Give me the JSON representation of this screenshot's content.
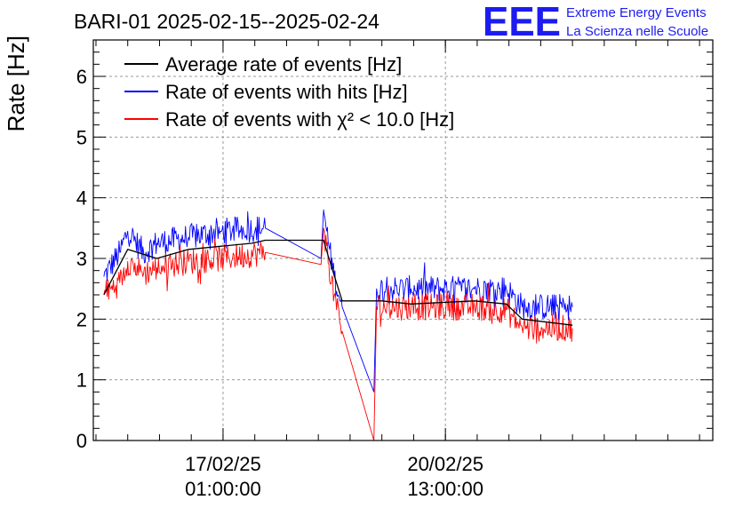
{
  "chart_data": {
    "type": "line",
    "title": "BARI-01 2025-02-15--2025-02-24",
    "ylabel": "Rate [Hz]",
    "xlabel": "",
    "ylim": [
      0,
      6.6
    ],
    "yticks": [
      0,
      1,
      2,
      3,
      4,
      5,
      6
    ],
    "x_range": [
      "2025-02-15 00:00:00",
      "2025-02-24 18:00:00"
    ],
    "xticks": [
      {
        "x": "2025-02-17 01:00:00",
        "date": "17/02/25",
        "time": "01:00:00"
      },
      {
        "x": "2025-02-20 13:00:00",
        "date": "20/02/25",
        "time": "13:00:00"
      }
    ],
    "grid": true,
    "legend_position": "top-left",
    "logo": {
      "mark": "EEE",
      "line1": "Extreme Energy Events",
      "line2": "La Scienza nelle Scuole",
      "color": "#1c1cf0"
    },
    "series": [
      {
        "name": "Average rate of events [Hz]",
        "color": "#000000",
        "points": [
          [
            "2025-02-15 04:00",
            2.4
          ],
          [
            "2025-02-15 13:00",
            3.15
          ],
          [
            "2025-02-16 00:00",
            3.0
          ],
          [
            "2025-02-16 12:00",
            3.15
          ],
          [
            "2025-02-17 00:00",
            3.2
          ],
          [
            "2025-02-17 12:00",
            3.25
          ],
          [
            "2025-02-17 17:00",
            3.3
          ],
          [
            "2025-02-18 15:00",
            3.3
          ],
          [
            "2025-02-18 17:00",
            3.0
          ],
          [
            "2025-02-18 22:00",
            2.3
          ],
          [
            "2025-02-19 11:00",
            2.3
          ],
          [
            "2025-02-19 13:00",
            2.3
          ],
          [
            "2025-02-20 00:00",
            2.25
          ],
          [
            "2025-02-21 00:00",
            2.3
          ],
          [
            "2025-02-21 12:00",
            2.25
          ],
          [
            "2025-02-21 18:00",
            2.0
          ],
          [
            "2025-02-22 13:00",
            1.9
          ]
        ]
      },
      {
        "name": "Rate of events with hits [Hz]",
        "color": "#0000ff",
        "points": [
          [
            "2025-02-15 04:00",
            2.7
          ],
          [
            "2025-02-15 10:00",
            3.1
          ],
          [
            "2025-02-15 13:00",
            3.45
          ],
          [
            "2025-02-15 19:00",
            3.1
          ],
          [
            "2025-02-16 00:00",
            3.25
          ],
          [
            "2025-02-16 12:00",
            3.35
          ],
          [
            "2025-02-17 00:00",
            3.45
          ],
          [
            "2025-02-17 17:00",
            3.5
          ],
          [
            "2025-02-18 14:00",
            3.0
          ],
          [
            "2025-02-18 15:00",
            3.8
          ],
          [
            "2025-02-18 17:00",
            3.2
          ],
          [
            "2025-02-18 19:00",
            2.7
          ],
          [
            "2025-02-18 22:00",
            2.2
          ],
          [
            "2025-02-19 10:00",
            0.8
          ],
          [
            "2025-02-19 11:00",
            2.5
          ],
          [
            "2025-02-20 00:00",
            2.5
          ],
          [
            "2025-02-21 00:00",
            2.5
          ],
          [
            "2025-02-21 12:00",
            2.5
          ],
          [
            "2025-02-21 18:00",
            2.2
          ],
          [
            "2025-02-22 13:00",
            2.2
          ]
        ]
      },
      {
        "name": "Rate of events with χ² < 10.0 [Hz]",
        "color": "#ff0000",
        "points": [
          [
            "2025-02-15 04:00",
            2.4
          ],
          [
            "2025-02-15 10:00",
            2.6
          ],
          [
            "2025-02-15 13:00",
            2.95
          ],
          [
            "2025-02-15 19:00",
            2.75
          ],
          [
            "2025-02-16 00:00",
            2.85
          ],
          [
            "2025-02-16 12:00",
            2.95
          ],
          [
            "2025-02-17 00:00",
            3.0
          ],
          [
            "2025-02-17 17:00",
            3.1
          ],
          [
            "2025-02-18 14:00",
            2.9
          ],
          [
            "2025-02-18 15:00",
            3.5
          ],
          [
            "2025-02-18 17:00",
            2.9
          ],
          [
            "2025-02-18 19:00",
            2.4
          ],
          [
            "2025-02-18 22:00",
            1.8
          ],
          [
            "2025-02-19 10:00",
            0.0
          ],
          [
            "2025-02-19 11:00",
            2.2
          ],
          [
            "2025-02-20 00:00",
            2.2
          ],
          [
            "2025-02-21 00:00",
            2.2
          ],
          [
            "2025-02-21 12:00",
            2.15
          ],
          [
            "2025-02-21 18:00",
            1.85
          ],
          [
            "2025-02-22 13:00",
            1.85
          ]
        ]
      }
    ]
  }
}
